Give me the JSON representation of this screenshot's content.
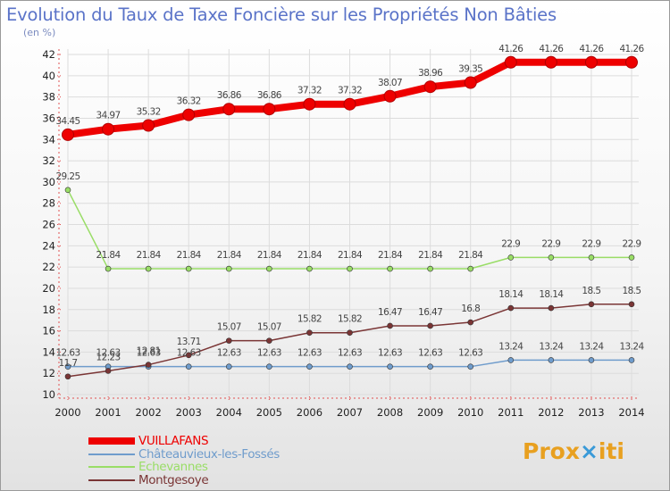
{
  "header": {
    "title": "Evolution du Taux de Taxe Foncière sur les Propriétés Non Bâties",
    "unit": "(en %)"
  },
  "logo": {
    "text": "Prox",
    "text2": "iti",
    "mark": "×"
  },
  "chart_data": {
    "type": "line",
    "title": "Evolution du Taux de Taxe Foncière sur les Propriétés Non Bâties",
    "ylabel": "(en %)",
    "xlabel": "",
    "ylim": [
      10,
      42
    ],
    "yticks": [
      10,
      12,
      14,
      16,
      18,
      20,
      22,
      24,
      26,
      28,
      30,
      32,
      34,
      36,
      38,
      40,
      42
    ],
    "x": [
      "2000",
      "2001",
      "2002",
      "2003",
      "2004",
      "2005",
      "2006",
      "2007",
      "2008",
      "2009",
      "2010",
      "2011",
      "2012",
      "2013",
      "2014"
    ],
    "legend_position": "bottom-left",
    "series": [
      {
        "name": "VUILLAFANS",
        "color": "#ee0000",
        "values": [
          34.45,
          34.97,
          35.32,
          36.32,
          36.86,
          36.86,
          37.32,
          37.32,
          38.07,
          38.96,
          39.35,
          41.26,
          41.26,
          41.26,
          41.26
        ],
        "labels": [
          "34.45",
          "34.97",
          "35.32",
          "36.32",
          "36.86",
          "36.86",
          "37.32",
          "37.32",
          "38.07",
          "38.96",
          "39.35",
          "41.26",
          "41.26",
          "41.26",
          "41.26"
        ]
      },
      {
        "name": "Châteauvieux-les-Fossés",
        "color": "#6f9ccc",
        "values": [
          12.63,
          12.63,
          12.63,
          12.63,
          12.63,
          12.63,
          12.63,
          12.63,
          12.63,
          12.63,
          12.63,
          13.24,
          13.24,
          13.24,
          13.24
        ],
        "labels": [
          "12.63",
          "12.63",
          "12.63",
          "12.63",
          "12.63",
          "12.63",
          "12.63",
          "12.63",
          "12.63",
          "12.63",
          "12.63",
          "13.24",
          "13.24",
          "13.24",
          "13.24"
        ]
      },
      {
        "name": "Echevannes",
        "color": "#99dd66",
        "values": [
          29.25,
          21.84,
          21.84,
          21.84,
          21.84,
          21.84,
          21.84,
          21.84,
          21.84,
          21.84,
          21.84,
          22.9,
          22.9,
          22.9,
          22.9
        ],
        "labels": [
          "29.25",
          "21.84",
          "21.84",
          "21.84",
          "21.84",
          "21.84",
          "21.84",
          "21.84",
          "21.84",
          "21.84",
          "21.84",
          "22.9",
          "22.9",
          "22.9",
          "22.9"
        ]
      },
      {
        "name": "Montgesoye",
        "color": "#7a3535",
        "values": [
          11.7,
          12.23,
          12.81,
          13.71,
          15.07,
          15.07,
          15.82,
          15.82,
          16.47,
          16.47,
          16.8,
          18.14,
          18.14,
          18.5,
          18.5
        ],
        "labels": [
          "11.7",
          "12.23",
          "12.81",
          "13.71",
          "15.07",
          "15.07",
          "15.82",
          "15.82",
          "16.47",
          "16.47",
          "16.8",
          "18.14",
          "18.14",
          "18.5",
          "18.5"
        ]
      }
    ]
  }
}
